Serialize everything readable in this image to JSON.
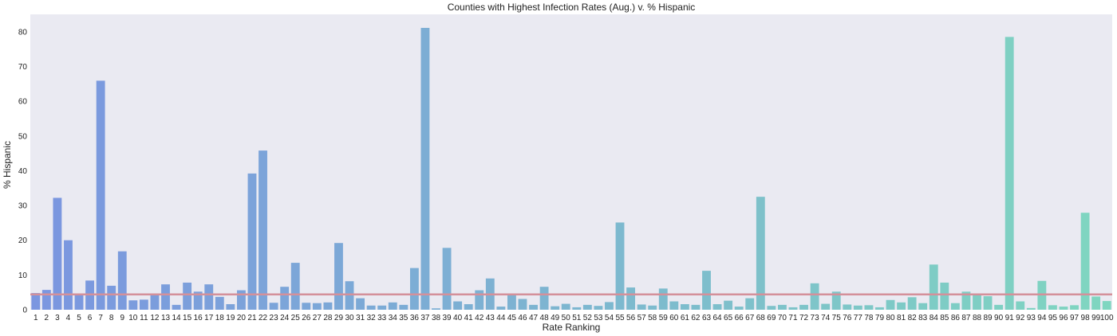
{
  "chart_data": {
    "type": "bar",
    "title": "Counties with Highest Infection Rates (Aug.) v. % Hispanic",
    "xlabel": "Rate Ranking",
    "ylabel": "% Hispanic",
    "ylim": [
      0,
      85
    ],
    "yticks": [
      0,
      10,
      20,
      30,
      40,
      50,
      60,
      70,
      80
    ],
    "grid": false,
    "background_color": "#eaeaf2",
    "palette_start": "#7b96e0",
    "palette_end": "#7fd6c0",
    "reference_line": {
      "value": 4.4,
      "color": "#d4909a"
    },
    "categories": [
      "1",
      "2",
      "3",
      "4",
      "5",
      "6",
      "7",
      "8",
      "9",
      "10",
      "11",
      "12",
      "13",
      "14",
      "15",
      "16",
      "17",
      "18",
      "19",
      "20",
      "21",
      "22",
      "23",
      "24",
      "25",
      "26",
      "27",
      "28",
      "29",
      "30",
      "31",
      "32",
      "33",
      "34",
      "35",
      "36",
      "37",
      "38",
      "39",
      "40",
      "41",
      "42",
      "43",
      "44",
      "45",
      "46",
      "47",
      "48",
      "49",
      "50",
      "51",
      "52",
      "53",
      "54",
      "55",
      "56",
      "57",
      "58",
      "59",
      "60",
      "61",
      "62",
      "63",
      "64",
      "65",
      "66",
      "67",
      "68",
      "69",
      "70",
      "71",
      "72",
      "73",
      "74",
      "75",
      "76",
      "77",
      "78",
      "79",
      "80",
      "81",
      "82",
      "83",
      "84",
      "85",
      "86",
      "87",
      "88",
      "89",
      "90",
      "91",
      "92",
      "93",
      "94",
      "95",
      "96",
      "97",
      "98",
      "99",
      "100"
    ],
    "values": [
      4.8,
      5.7,
      32.2,
      20.0,
      4.2,
      8.4,
      65.9,
      6.9,
      16.8,
      2.7,
      2.9,
      4.6,
      7.3,
      1.4,
      7.8,
      5.2,
      7.3,
      3.7,
      1.6,
      5.6,
      39.2,
      45.8,
      2.0,
      6.6,
      13.5,
      2.0,
      1.9,
      2.1,
      19.2,
      8.2,
      3.3,
      1.2,
      1.2,
      2.1,
      1.4,
      12.0,
      81.1,
      0.4,
      17.8,
      2.4,
      1.6,
      5.6,
      9.0,
      0.9,
      4.7,
      3.1,
      1.4,
      6.6,
      1.0,
      1.7,
      0.7,
      1.4,
      1.1,
      2.2,
      25.1,
      6.4,
      1.5,
      1.2,
      6.1,
      2.4,
      1.6,
      1.4,
      11.2,
      1.6,
      2.6,
      0.9,
      3.3,
      32.5,
      1.1,
      1.4,
      0.7,
      1.4,
      7.6,
      1.7,
      5.2,
      1.5,
      1.2,
      1.3,
      0.7,
      2.8,
      2.1,
      3.6,
      1.9,
      13.0,
      7.8,
      1.9,
      5.2,
      4.3,
      3.9,
      1.4,
      78.5,
      2.4,
      0.5,
      8.3,
      1.3,
      0.9,
      1.3,
      27.9,
      3.8,
      2.5
    ]
  }
}
